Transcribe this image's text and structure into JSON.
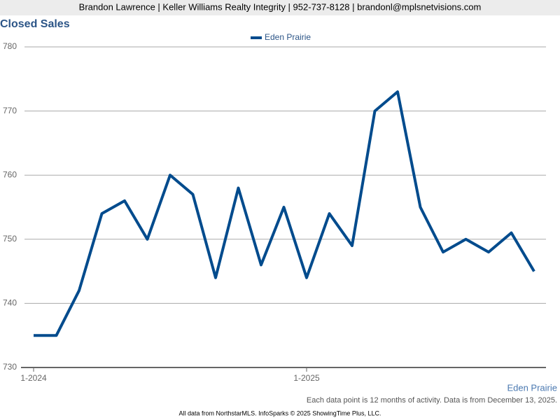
{
  "header": "Brandon Lawrence | Keller Williams Realty Integrity | 952-737-8128 | brandonl@mplsnetvisions.com",
  "chart_data": {
    "type": "line",
    "title": "Closed Sales",
    "categories": [
      "1-2024",
      null,
      null,
      null,
      null,
      null,
      null,
      null,
      null,
      null,
      null,
      null,
      "1-2025",
      null,
      null,
      null,
      null,
      null,
      null,
      null,
      null,
      null,
      null
    ],
    "series": [
      {
        "name": "Eden Prairie",
        "color": "#004b8d",
        "values": [
          735,
          735,
          742,
          754,
          756,
          750,
          760,
          757,
          744,
          758,
          746,
          755,
          744,
          754,
          749,
          770,
          773,
          755,
          748,
          750,
          748,
          751,
          745
        ]
      }
    ],
    "ylim": [
      730,
      780
    ],
    "yticks": [
      730,
      740,
      750,
      760,
      770,
      780
    ],
    "grid": true,
    "annotation": "Eden Prairie",
    "note": "Each data point is 12 months of activity. Data is from December 13, 2025."
  },
  "footer": "All data from NorthstarMLS. InfoSparks © 2025 ShowingTime Plus, LLC."
}
